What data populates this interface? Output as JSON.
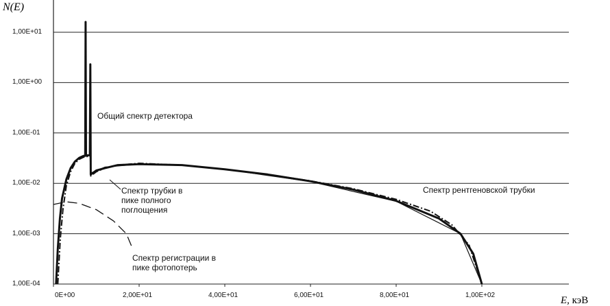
{
  "chart_data": {
    "type": "line",
    "title": "",
    "ylabel": "N(E)",
    "xlabel": "E, кэВ",
    "xlabel_var": "E,",
    "xlabel_unit": "кэВ",
    "yscale": "log",
    "ylim": [
      0.0001,
      10
    ],
    "xlim": [
      0,
      120
    ],
    "grid": true,
    "y_ticks": [
      {
        "value": 10,
        "label": "1,00E+01"
      },
      {
        "value": 1,
        "label": "1,00E+00"
      },
      {
        "value": 0.1,
        "label": "1,00E-01"
      },
      {
        "value": 0.01,
        "label": "1,00E-02"
      },
      {
        "value": 0.001,
        "label": "1,00E-03"
      },
      {
        "value": 0.0001,
        "label": "1,00E-04"
      }
    ],
    "x_ticks": [
      {
        "value": 0,
        "label": "0E+00"
      },
      {
        "value": 20,
        "label": "2,00E+01"
      },
      {
        "value": 40,
        "label": "4,00E+01"
      },
      {
        "value": 60,
        "label": "6,00E+01"
      },
      {
        "value": 80,
        "label": "8,00E+01"
      },
      {
        "value": 100,
        "label": "1,00E+02"
      }
    ],
    "series": [
      {
        "name": "Общий спектр детектора",
        "style": "solid",
        "points": [
          [
            0.6,
            0.0001
          ],
          [
            1,
            0.0005
          ],
          [
            1.5,
            0.002
          ],
          [
            2,
            0.005
          ],
          [
            3,
            0.012
          ],
          [
            4,
            0.02
          ],
          [
            5,
            0.027
          ],
          [
            6,
            0.032
          ],
          [
            7,
            0.035
          ],
          [
            7.4,
            0.035
          ],
          [
            7.5,
            16
          ],
          [
            7.6,
            0.036
          ],
          [
            8.5,
            0.036
          ],
          [
            8.6,
            2.3
          ],
          [
            8.7,
            0.015
          ],
          [
            10,
            0.018
          ],
          [
            12,
            0.02
          ],
          [
            15,
            0.023
          ],
          [
            20,
            0.024
          ],
          [
            30,
            0.023
          ],
          [
            40,
            0.019
          ],
          [
            50,
            0.015
          ],
          [
            60,
            0.011
          ],
          [
            70,
            0.0075
          ],
          [
            80,
            0.0045
          ],
          [
            90,
            0.002
          ],
          [
            95,
            0.001
          ],
          [
            98,
            0.0004
          ],
          [
            100,
            0.0001
          ]
        ]
      },
      {
        "name": "Спектр трубки в пике полного поглощения",
        "style": "dashdot",
        "points": [
          [
            1,
            0.0001
          ],
          [
            1.6,
            0.0008
          ],
          [
            2.2,
            0.003
          ],
          [
            3,
            0.009
          ],
          [
            4,
            0.017
          ],
          [
            5,
            0.025
          ],
          [
            6,
            0.03
          ],
          [
            7,
            0.033
          ],
          [
            8.6,
            0.035
          ],
          [
            8.7,
            0.014
          ],
          [
            10,
            0.017
          ],
          [
            12,
            0.02
          ],
          [
            15,
            0.023
          ],
          [
            20,
            0.025
          ],
          [
            30,
            0.023
          ],
          [
            40,
            0.019
          ],
          [
            50,
            0.015
          ],
          [
            60,
            0.0112
          ],
          [
            70,
            0.0078
          ],
          [
            80,
            0.0048
          ],
          [
            88,
            0.0028
          ],
          [
            93,
            0.0015
          ],
          [
            97,
            0.0006
          ],
          [
            100,
            0.0001
          ]
        ]
      },
      {
        "name": "Спектр рентгеновской трубки",
        "style": "solid-thin",
        "points": [
          [
            8.7,
            0.016
          ],
          [
            12,
            0.021
          ],
          [
            20,
            0.024
          ],
          [
            30,
            0.023
          ],
          [
            40,
            0.019
          ],
          [
            60,
            0.0108
          ],
          [
            80,
            0.0044
          ],
          [
            95,
            0.001
          ],
          [
            100,
            0.0001
          ]
        ]
      },
      {
        "name": "Спектр регистрации в пике фотопотерь",
        "style": "dashed",
        "points": [
          [
            0,
            0.0038
          ],
          [
            3,
            0.0043
          ],
          [
            6,
            0.004
          ],
          [
            10,
            0.003
          ],
          [
            14,
            0.0018
          ],
          [
            17,
            0.001
          ],
          [
            18.5,
            0.0005
          ]
        ]
      }
    ],
    "annotations": [
      "Общий спектр детектора",
      "Спектр трубки в пике полного поглощения",
      "Спектр рентгеновской трубки",
      "Спектр регистрации в пике фотопотерь"
    ]
  }
}
